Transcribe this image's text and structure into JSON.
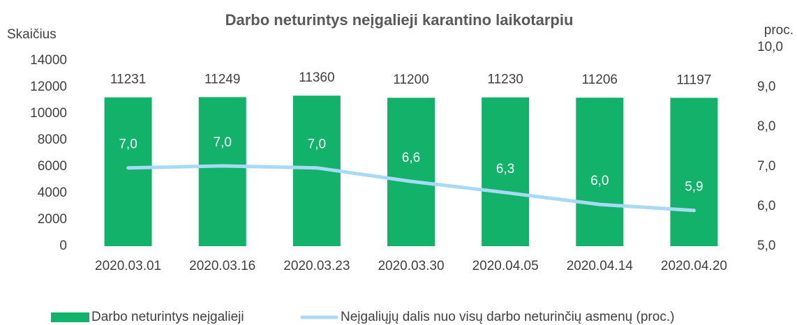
{
  "chart_data": {
    "type": "bar_line",
    "title": "Darbo neturintys neįgalieji karantino laikotarpiu",
    "y_label": "Skaičius",
    "y2_label": "proc.",
    "categories": [
      "2020.03.01",
      "2020.03.16",
      "2020.03.23",
      "2020.03.30",
      "2020.04.05",
      "2020.04.14",
      "2020.04.20"
    ],
    "series": [
      {
        "name": "Darbo neturintys neįgalieji",
        "type": "bar",
        "color": "#12b26b",
        "values": [
          11231,
          11249,
          11360,
          11200,
          11230,
          11206,
          11197
        ]
      },
      {
        "name": "Neįgaliųjų dalis nuo visų darbo neturinčių asmenų (proc.)",
        "type": "line",
        "axis": "y2",
        "color": "#a8d9f5",
        "values": [
          6.97,
          7.02,
          6.97,
          6.63,
          6.35,
          6.05,
          5.9
        ],
        "value_labels": [
          "7,0",
          "7,0",
          "7,0",
          "6,6",
          "6,3",
          "6,0",
          "5,9"
        ]
      }
    ],
    "ylim": [
      0,
      14000
    ],
    "yticks": [
      0,
      2000,
      4000,
      6000,
      8000,
      10000,
      12000,
      14000
    ],
    "y2lim": [
      5,
      10
    ],
    "y2ticks": [
      {
        "value": 5,
        "label": "5,0"
      },
      {
        "value": 6,
        "label": "6,0"
      },
      {
        "value": 7,
        "label": "7,0"
      },
      {
        "value": 8,
        "label": "8,0"
      },
      {
        "value": 9,
        "label": "9,0"
      },
      {
        "value": 10,
        "label": "10,0"
      }
    ],
    "legend": "bottom"
  }
}
